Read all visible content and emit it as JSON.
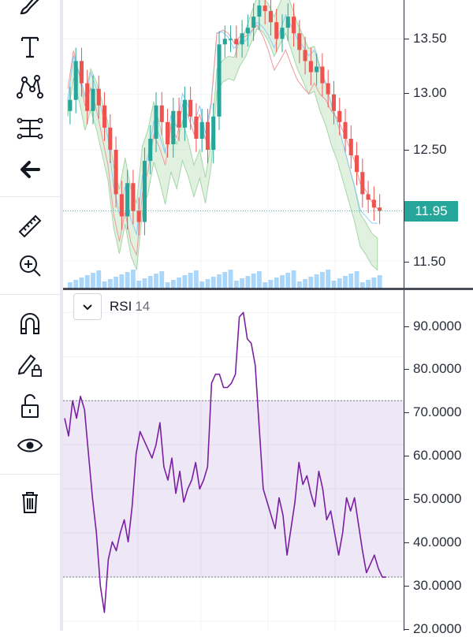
{
  "toolbar": {
    "tools": [
      {
        "icon": "brush-icon"
      },
      {
        "icon": "text-icon"
      },
      {
        "icon": "pattern-icon"
      },
      {
        "icon": "measure-lines-icon"
      },
      {
        "icon": "arrow-left-icon"
      },
      {
        "icon": "ruler-icon"
      },
      {
        "icon": "zoom-in-icon"
      },
      {
        "icon": "magnet-icon"
      },
      {
        "icon": "pencil-lock-icon"
      },
      {
        "icon": "unlock-icon"
      },
      {
        "icon": "eye-icon"
      },
      {
        "icon": "trash-icon"
      }
    ]
  },
  "price_axis": {
    "ticks": [
      "13.50",
      "13.00",
      "12.50",
      "11.50"
    ],
    "current_price": "11.95"
  },
  "rsi": {
    "name": "RSI",
    "length": "14",
    "ticks": [
      "90.0000",
      "80.0000",
      "70.0000",
      "60.0000",
      "50.0000",
      "40.0000",
      "30.0000",
      "20.0000"
    ]
  },
  "chart_data": [
    {
      "type": "line",
      "series_kind": "candlestick",
      "ylim": [
        11.25,
        13.85
      ],
      "ticks": [
        11.5,
        12.5,
        13.0,
        13.5
      ],
      "last_price": 11.95,
      "close": [
        12.95,
        13.3,
        13.1,
        12.85,
        13.05,
        12.9,
        12.7,
        12.5,
        12.1,
        11.9,
        12.2,
        11.95,
        11.85,
        12.4,
        12.6,
        12.9,
        12.75,
        12.55,
        12.85,
        12.7,
        12.95,
        12.8,
        12.6,
        12.75,
        12.5,
        12.8,
        13.45,
        13.5,
        13.5,
        13.45,
        13.55,
        13.6,
        13.7,
        13.8,
        13.75,
        13.65,
        13.5,
        13.6,
        13.7,
        13.55,
        13.4,
        13.3,
        13.2,
        13.25,
        13.1,
        13.0,
        12.85,
        12.75,
        12.6,
        12.45,
        12.3,
        12.1,
        12.05,
        11.98,
        11.95
      ],
      "colors": {
        "up": "#26a69a",
        "down": "#ef5350",
        "cloud_bull": "#a5d6a7",
        "cloud_bear": "#ef9a9a",
        "volume": "#64b5f6"
      }
    },
    {
      "type": "line",
      "name": "RSI",
      "ylim": [
        20,
        94
      ],
      "ticks": [
        20,
        30,
        40,
        50,
        60,
        70,
        80,
        90
      ],
      "band": [
        30,
        70
      ],
      "values": [
        66,
        62,
        70,
        66,
        71,
        68,
        58,
        48,
        40,
        28,
        22,
        34,
        38,
        36,
        40,
        43,
        38,
        46,
        58,
        63,
        61,
        59,
        57,
        60,
        65,
        55,
        52,
        57,
        49,
        54,
        47,
        50,
        52,
        56,
        50,
        52,
        55,
        74,
        76,
        76,
        73,
        73,
        74,
        76,
        89,
        90,
        84,
        83,
        78,
        64,
        50,
        47,
        44,
        41,
        48,
        44,
        35,
        41,
        47,
        56,
        51,
        53,
        49,
        46,
        54,
        50,
        43,
        45,
        40,
        35,
        40,
        48,
        45,
        48,
        42,
        36,
        31,
        33,
        35,
        32,
        30,
        30
      ],
      "color": "#7b1fa2"
    }
  ]
}
